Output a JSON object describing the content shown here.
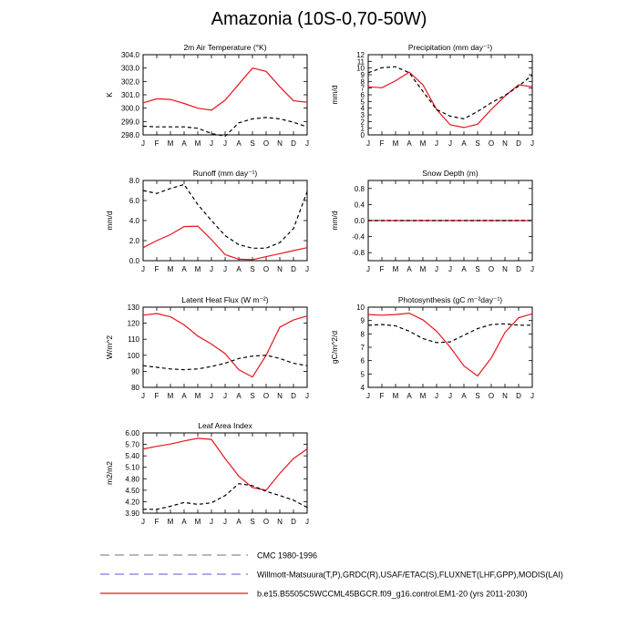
{
  "figure": {
    "title": "Amazonia (10S-0,70-50W)"
  },
  "legend": [
    {
      "label": "CMC 1980-1996",
      "color": "#8a8aa8",
      "style": "dashed"
    },
    {
      "label": "Willmott-Matsuura(T,P),GRDC(R),USAF/ETAC(S),FLUXNET(LHF,GPP),MODIS(LAI)",
      "color": "#7a7ae0",
      "style": "dashed"
    },
    {
      "label": "b.e15.B5505C5WCCML45BGCR.f09_g16.control.EM1-20 (yrs 2011-2030)",
      "color": "#e8141e",
      "style": "solid"
    }
  ],
  "chart_data": [
    {
      "type": "line",
      "title": "2m Air Temperature (°K)",
      "ylabel": "K",
      "categories": [
        "J",
        "F",
        "M",
        "A",
        "M",
        "J",
        "J",
        "A",
        "S",
        "O",
        "N",
        "D",
        "J"
      ],
      "ylim": [
        298.0,
        304.0
      ],
      "yticks": [
        "298.0",
        "299.0",
        "300.0",
        "301.0",
        "302.0",
        "303.0",
        "304.0"
      ],
      "series": [
        {
          "values": [
            300.4,
            300.7,
            300.65,
            300.35,
            300.0,
            299.85,
            300.6,
            301.8,
            303.0,
            302.75,
            301.6,
            300.55,
            300.45
          ],
          "color": "#e8141e",
          "style": "solid"
        },
        {
          "values": [
            298.65,
            298.6,
            298.6,
            298.6,
            298.5,
            298.1,
            297.9,
            298.9,
            299.2,
            299.3,
            299.2,
            298.95,
            298.6
          ],
          "color": "#000000",
          "style": "dashed"
        }
      ]
    },
    {
      "type": "line",
      "title": "Precipitation (mm day⁻¹)",
      "ylabel": "mm/d",
      "categories": [
        "J",
        "F",
        "M",
        "A",
        "M",
        "J",
        "J",
        "A",
        "S",
        "O",
        "N",
        "D",
        "J"
      ],
      "ylim": [
        0,
        12
      ],
      "yticks": [
        "0",
        "1",
        "2",
        "3",
        "4",
        "5",
        "6",
        "7",
        "8",
        "9",
        "10",
        "11",
        "12"
      ],
      "series": [
        {
          "values": [
            7.2,
            7.05,
            8.1,
            9.4,
            7.5,
            3.8,
            1.5,
            1.1,
            1.6,
            3.8,
            5.8,
            7.5,
            7.2
          ],
          "color": "#e8141e",
          "style": "solid"
        },
        {
          "values": [
            9.3,
            10.05,
            10.2,
            9.3,
            6.5,
            3.8,
            2.8,
            2.4,
            3.5,
            4.8,
            5.9,
            7.3,
            8.95
          ],
          "color": "#000000",
          "style": "dashed"
        }
      ]
    },
    {
      "type": "line",
      "title": "Runoff (mm day⁻¹)",
      "ylabel": "mm/d",
      "categories": [
        "J",
        "F",
        "M",
        "A",
        "M",
        "J",
        "J",
        "A",
        "S",
        "O",
        "N",
        "D",
        "J"
      ],
      "ylim": [
        0.0,
        8.0
      ],
      "yticks": [
        "0.0",
        "2.0",
        "4.0",
        "6.0",
        "8.0"
      ],
      "series": [
        {
          "values": [
            1.3,
            2.0,
            2.6,
            3.4,
            3.45,
            2.1,
            0.6,
            0.15,
            0.1,
            0.4,
            0.7,
            1.0,
            1.3
          ],
          "color": "#e8141e",
          "style": "solid"
        },
        {
          "values": [
            7.0,
            6.7,
            7.2,
            7.6,
            5.6,
            4.0,
            2.5,
            1.6,
            1.25,
            1.25,
            1.8,
            3.2,
            6.9
          ],
          "color": "#000000",
          "style": "dashed"
        }
      ]
    },
    {
      "type": "line",
      "title": "Snow Depth (m)",
      "ylabel": "mm/d",
      "categories": [
        "J",
        "F",
        "M",
        "A",
        "M",
        "J",
        "J",
        "A",
        "S",
        "O",
        "N",
        "D",
        "J"
      ],
      "ylim": [
        -1.0,
        1.0
      ],
      "yticks": [
        "-0.8",
        "-0.4",
        "0.0",
        "0.4",
        "0.8"
      ],
      "series": [
        {
          "values": [
            0,
            0,
            0,
            0,
            0,
            0,
            0,
            0,
            0,
            0,
            0,
            0,
            0
          ],
          "color": "#e8141e",
          "style": "solid"
        },
        {
          "values": [
            0,
            0,
            0,
            0,
            0,
            0,
            0,
            0,
            0,
            0,
            0,
            0,
            0
          ],
          "color": "#000000",
          "style": "dashed"
        }
      ]
    },
    {
      "type": "line",
      "title": "Latent Heat Flux (W m⁻²)",
      "ylabel": "W/m^2",
      "categories": [
        "J",
        "F",
        "M",
        "A",
        "M",
        "J",
        "J",
        "A",
        "S",
        "O",
        "N",
        "D",
        "J"
      ],
      "ylim": [
        80,
        130
      ],
      "yticks": [
        "80",
        "90",
        "100",
        "110",
        "120",
        "130"
      ],
      "series": [
        {
          "values": [
            125,
            126,
            124,
            119,
            112,
            107,
            101,
            91,
            86.5,
            100,
            117.5,
            122,
            124.5
          ],
          "color": "#e8141e",
          "style": "solid"
        },
        {
          "values": [
            93.5,
            92.5,
            91.5,
            91,
            91.5,
            93,
            95,
            98,
            99.5,
            100,
            98,
            95,
            93.5
          ],
          "color": "#000000",
          "style": "dashed"
        }
      ]
    },
    {
      "type": "line",
      "title": "Photosynthesis (gC m⁻²day⁻¹)",
      "ylabel": "gC/m^2/d",
      "categories": [
        "J",
        "F",
        "M",
        "A",
        "M",
        "J",
        "J",
        "A",
        "S",
        "O",
        "N",
        "D",
        "J"
      ],
      "ylim": [
        4,
        10
      ],
      "yticks": [
        "4",
        "5",
        "6",
        "7",
        "8",
        "9",
        "10"
      ],
      "series": [
        {
          "values": [
            9.45,
            9.4,
            9.45,
            9.55,
            9.05,
            8.2,
            7.0,
            5.6,
            4.85,
            6.2,
            8.1,
            9.2,
            9.5
          ],
          "color": "#e8141e",
          "style": "solid"
        },
        {
          "values": [
            8.65,
            8.7,
            8.6,
            8.2,
            7.65,
            7.35,
            7.4,
            7.9,
            8.4,
            8.7,
            8.75,
            8.65,
            8.65
          ],
          "color": "#000000",
          "style": "dashed"
        }
      ]
    },
    {
      "type": "line",
      "title": "Leaf Area Index",
      "ylabel": "m2/m2",
      "categories": [
        "J",
        "F",
        "M",
        "A",
        "M",
        "J",
        "J",
        "A",
        "S",
        "O",
        "N",
        "D",
        "J"
      ],
      "ylim": [
        3.9,
        6.0
      ],
      "yticks": [
        "3.90",
        "4.20",
        "4.50",
        "4.80",
        "5.10",
        "5.40",
        "5.70",
        "6.00"
      ],
      "series": [
        {
          "values": [
            5.58,
            5.65,
            5.71,
            5.79,
            5.86,
            5.83,
            5.33,
            4.87,
            4.57,
            4.5,
            4.94,
            5.33,
            5.58
          ],
          "color": "#e8141e",
          "style": "solid"
        },
        {
          "values": [
            4.0,
            4.0,
            4.08,
            4.18,
            4.13,
            4.17,
            4.36,
            4.67,
            4.62,
            4.47,
            4.36,
            4.24,
            4.05
          ],
          "color": "#000000",
          "style": "dashed"
        }
      ]
    }
  ]
}
